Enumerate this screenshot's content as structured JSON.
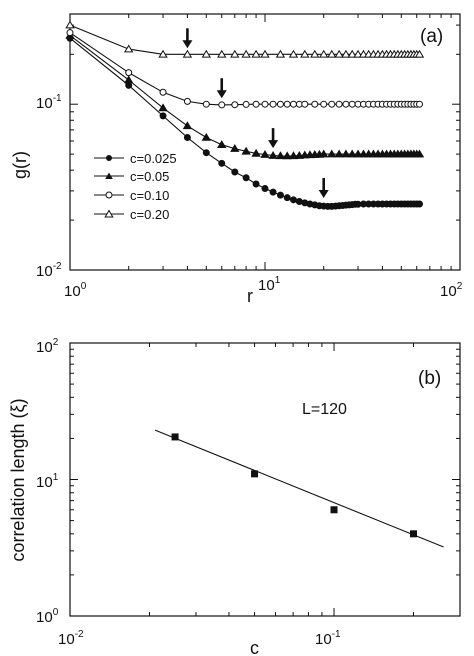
{
  "chart_data": [
    {
      "type": "line",
      "panel_label": "(a)",
      "xlabel": "r",
      "ylabel": "g(r)",
      "xscale": "log",
      "yscale": "log",
      "xlim": [
        1,
        100
      ],
      "ylim": [
        0.01,
        0.35
      ],
      "xticks": [
        {
          "base": "10",
          "exp": "0"
        },
        {
          "base": "10",
          "exp": "1"
        },
        {
          "base": "10",
          "exp": "2"
        }
      ],
      "yticks": [
        {
          "base": "10",
          "exp": "-2"
        },
        {
          "base": "10",
          "exp": "-1"
        }
      ],
      "legend_position": "center-left",
      "series": [
        {
          "name": "c=0.025",
          "marker": "filled-circle",
          "arrow_at": 20,
          "plateau": 0.025,
          "x": [
            1,
            2,
            3,
            4,
            5,
            6,
            7,
            8,
            9,
            10,
            11,
            12,
            13,
            14,
            15,
            16,
            17,
            18,
            19,
            20,
            21,
            22,
            23,
            24,
            25,
            26,
            27,
            28,
            29,
            30,
            32,
            34,
            36,
            38,
            40,
            42,
            44,
            46,
            48,
            50,
            52,
            54,
            56,
            58,
            60,
            62
          ],
          "y": [
            0.25,
            0.13,
            0.085,
            0.063,
            0.051,
            0.044,
            0.039,
            0.036,
            0.033,
            0.031,
            0.0295,
            0.0283,
            0.0273,
            0.0265,
            0.0259,
            0.0254,
            0.025,
            0.0247,
            0.0244,
            0.0243,
            0.0242,
            0.0242,
            0.0243,
            0.0244,
            0.0245,
            0.0246,
            0.0247,
            0.0248,
            0.0249,
            0.0249,
            0.025,
            0.025,
            0.025,
            0.025,
            0.025,
            0.025,
            0.025,
            0.025,
            0.025,
            0.025,
            0.025,
            0.025,
            0.025,
            0.025,
            0.025,
            0.025
          ]
        },
        {
          "name": "c=0.05",
          "marker": "filled-triangle",
          "arrow_at": 11,
          "plateau": 0.05,
          "x": [
            1,
            2,
            3,
            4,
            5,
            6,
            7,
            8,
            9,
            10,
            11,
            12,
            13,
            14,
            15,
            16,
            17,
            18,
            19,
            20,
            22,
            24,
            26,
            28,
            30,
            32,
            34,
            36,
            38,
            40,
            42,
            44,
            46,
            48,
            50,
            52,
            54,
            56,
            58,
            60,
            62
          ],
          "y": [
            0.26,
            0.14,
            0.095,
            0.074,
            0.063,
            0.057,
            0.054,
            0.052,
            0.0505,
            0.0497,
            0.049,
            0.0488,
            0.0487,
            0.0488,
            0.049,
            0.0493,
            0.0495,
            0.0497,
            0.0498,
            0.05,
            0.05,
            0.05,
            0.05,
            0.05,
            0.05,
            0.05,
            0.05,
            0.05,
            0.05,
            0.05,
            0.05,
            0.05,
            0.05,
            0.05,
            0.05,
            0.05,
            0.05,
            0.05,
            0.05,
            0.05,
            0.05
          ]
        },
        {
          "name": "c=0.10",
          "marker": "open-circle",
          "arrow_at": 6,
          "plateau": 0.1,
          "x": [
            1,
            2,
            3,
            4,
            5,
            6,
            7,
            8,
            9,
            10,
            11,
            12,
            13,
            14,
            15,
            16,
            18,
            20,
            22,
            24,
            26,
            28,
            30,
            32,
            34,
            36,
            38,
            40,
            42,
            44,
            46,
            48,
            50,
            52,
            54,
            56,
            58,
            60,
            62
          ],
          "y": [
            0.27,
            0.155,
            0.118,
            0.104,
            0.1,
            0.099,
            0.0993,
            0.0997,
            0.1,
            0.1,
            0.1,
            0.1,
            0.1,
            0.1,
            0.1,
            0.1,
            0.1,
            0.1,
            0.1,
            0.1,
            0.1,
            0.1,
            0.1,
            0.1,
            0.1,
            0.1,
            0.1,
            0.1,
            0.1,
            0.1,
            0.1,
            0.1,
            0.1,
            0.1,
            0.1,
            0.1,
            0.1,
            0.1,
            0.1
          ]
        },
        {
          "name": "c=0.20",
          "marker": "open-triangle",
          "arrow_at": 4,
          "plateau": 0.2,
          "x": [
            1,
            2,
            3,
            4,
            5,
            6,
            7,
            8,
            9,
            10,
            12,
            14,
            16,
            18,
            20,
            22,
            24,
            26,
            28,
            30,
            32,
            34,
            36,
            38,
            40,
            42,
            44,
            46,
            48,
            50,
            52,
            54,
            56,
            58,
            60,
            62
          ],
          "y": [
            0.3,
            0.215,
            0.2,
            0.2,
            0.2,
            0.2,
            0.2,
            0.2,
            0.2,
            0.2,
            0.2,
            0.2,
            0.2,
            0.2,
            0.2,
            0.2,
            0.2,
            0.2,
            0.2,
            0.2,
            0.2,
            0.2,
            0.2,
            0.2,
            0.2,
            0.2,
            0.2,
            0.2,
            0.2,
            0.2,
            0.2,
            0.2,
            0.2,
            0.2,
            0.2,
            0.2
          ]
        }
      ]
    },
    {
      "type": "scatter",
      "panel_label": "(b)",
      "annotation": "L=120",
      "xlabel": "c",
      "ylabel": "correlation length (ξ)",
      "xscale": "log",
      "yscale": "log",
      "xlim": [
        0.01,
        0.3
      ],
      "ylim": [
        1,
        100
      ],
      "xticks": [
        {
          "base": "10",
          "exp": "-2"
        },
        {
          "base": "10",
          "exp": "-1"
        }
      ],
      "yticks": [
        {
          "base": "10",
          "exp": "0"
        },
        {
          "base": "10",
          "exp": "1"
        },
        {
          "base": "10",
          "exp": "2"
        }
      ],
      "points": {
        "x": [
          0.025,
          0.05,
          0.1,
          0.2
        ],
        "y": [
          20.5,
          11,
          6,
          4
        ]
      },
      "fit_line": {
        "x": [
          0.021,
          0.26
        ],
        "y": [
          23,
          3.2
        ]
      }
    }
  ]
}
